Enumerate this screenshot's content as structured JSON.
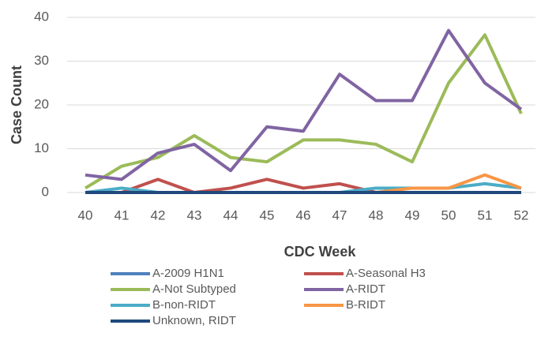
{
  "chart_data": {
    "type": "line",
    "x_label": "CDC Week",
    "y_label": "Case Count",
    "categories": [
      "40",
      "41",
      "42",
      "43",
      "44",
      "45",
      "46",
      "47",
      "48",
      "49",
      "50",
      "51",
      "52"
    ],
    "ylim": [
      0,
      40
    ],
    "yticks": [
      0,
      10,
      20,
      30,
      40
    ],
    "grid": true,
    "legend_position": "bottom",
    "series": [
      {
        "name": "A-2009 H1N1",
        "color": "#4f81bd",
        "values": [
          0,
          0,
          0,
          0,
          0,
          0,
          0,
          0,
          0,
          0,
          0,
          0,
          0
        ]
      },
      {
        "name": "A-Seasonal H3",
        "color": "#c0504d",
        "values": [
          0,
          0,
          3,
          0,
          1,
          3,
          1,
          2,
          0,
          0,
          0,
          0,
          0
        ]
      },
      {
        "name": "A-Not Subtyped",
        "color": "#9bbb59",
        "values": [
          1,
          6,
          8,
          13,
          8,
          7,
          12,
          12,
          11,
          7,
          25,
          36,
          18
        ]
      },
      {
        "name": "A-RIDT",
        "color": "#8064a2",
        "values": [
          4,
          3,
          9,
          11,
          5,
          15,
          14,
          27,
          21,
          21,
          37,
          25,
          19
        ]
      },
      {
        "name": "B-non-RIDT",
        "color": "#4bacc6",
        "values": [
          0,
          1,
          0,
          0,
          0,
          0,
          0,
          0,
          1,
          1,
          1,
          2,
          1
        ]
      },
      {
        "name": "B-RIDT",
        "color": "#f79646",
        "values": [
          0,
          0,
          0,
          0,
          0,
          0,
          0,
          0,
          0,
          1,
          1,
          4,
          1
        ]
      },
      {
        "name": "Unknown, RIDT",
        "color": "#1f497d",
        "values": [
          0,
          0,
          0,
          0,
          0,
          0,
          0,
          0,
          0,
          0,
          0,
          0,
          0
        ]
      }
    ]
  }
}
